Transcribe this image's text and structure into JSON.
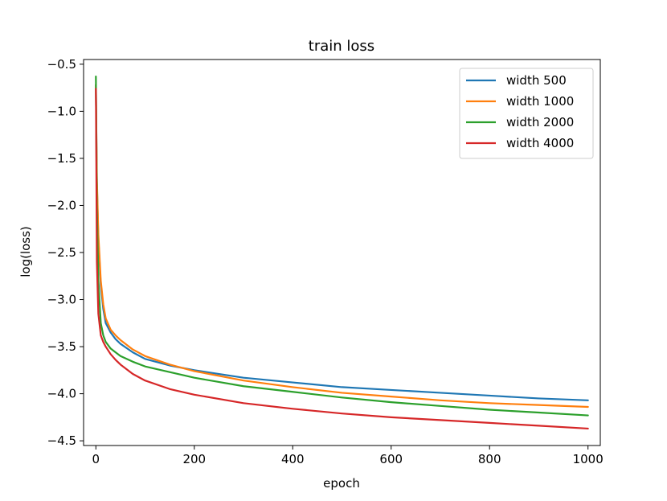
{
  "chart_data": {
    "type": "line",
    "title": "train loss",
    "xlabel": "epoch",
    "ylabel": "log(loss)",
    "xlim": [
      -25,
      1025
    ],
    "ylim": [
      -4.55,
      -0.45
    ],
    "xticks": [
      0,
      200,
      400,
      600,
      800,
      1000
    ],
    "xtick_labels": [
      "0",
      "200",
      "400",
      "600",
      "800",
      "1000"
    ],
    "yticks": [
      -0.5,
      -1.0,
      -1.5,
      -2.0,
      -2.5,
      -3.0,
      -3.5,
      -4.0,
      -4.5
    ],
    "ytick_labels": [
      "−0.5",
      "−1.0",
      "−1.5",
      "−2.0",
      "−2.5",
      "−3.0",
      "−3.5",
      "−4.0",
      "−4.5"
    ],
    "grid": false,
    "legend_position": "top-right",
    "x": [
      0,
      2,
      5,
      10,
      15,
      20,
      30,
      40,
      50,
      75,
      100,
      150,
      200,
      300,
      400,
      500,
      600,
      700,
      800,
      900,
      1000
    ],
    "series": [
      {
        "name": "width 500",
        "color": "#1f77b4",
        "values": [
          -0.72,
          -1.75,
          -2.35,
          -2.85,
          -3.1,
          -3.25,
          -3.35,
          -3.42,
          -3.47,
          -3.56,
          -3.63,
          -3.7,
          -3.75,
          -3.83,
          -3.88,
          -3.93,
          -3.96,
          -3.99,
          -4.02,
          -4.05,
          -4.07
        ]
      },
      {
        "name": "width 1000",
        "color": "#ff7f0e",
        "values": [
          -0.72,
          -1.7,
          -2.3,
          -2.8,
          -3.05,
          -3.2,
          -3.32,
          -3.38,
          -3.43,
          -3.53,
          -3.6,
          -3.69,
          -3.76,
          -3.86,
          -3.93,
          -3.99,
          -4.03,
          -4.07,
          -4.1,
          -4.12,
          -4.14
        ]
      },
      {
        "name": "width 2000",
        "color": "#2ca02c",
        "values": [
          -0.63,
          -2.0,
          -2.8,
          -3.25,
          -3.38,
          -3.45,
          -3.52,
          -3.56,
          -3.6,
          -3.66,
          -3.71,
          -3.77,
          -3.83,
          -3.92,
          -3.98,
          -4.04,
          -4.09,
          -4.13,
          -4.17,
          -4.2,
          -4.23
        ]
      },
      {
        "name": "width 4000",
        "color": "#d62728",
        "values": [
          -0.76,
          -2.6,
          -3.15,
          -3.38,
          -3.45,
          -3.5,
          -3.58,
          -3.64,
          -3.69,
          -3.79,
          -3.86,
          -3.95,
          -4.01,
          -4.1,
          -4.16,
          -4.21,
          -4.25,
          -4.28,
          -4.31,
          -4.34,
          -4.37
        ]
      }
    ]
  }
}
